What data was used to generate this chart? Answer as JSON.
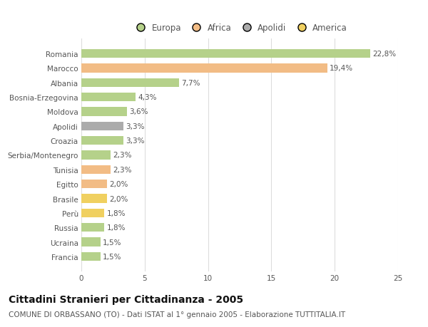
{
  "categories": [
    "Romania",
    "Marocco",
    "Albania",
    "Bosnia-Erzegovina",
    "Moldova",
    "Apolidi",
    "Croazia",
    "Serbia/Montenegro",
    "Tunisia",
    "Egitto",
    "Brasile",
    "Perù",
    "Russia",
    "Ucraina",
    "Francia"
  ],
  "values": [
    22.8,
    19.4,
    7.7,
    4.3,
    3.6,
    3.3,
    3.3,
    2.3,
    2.3,
    2.0,
    2.0,
    1.8,
    1.8,
    1.5,
    1.5
  ],
  "labels": [
    "22,8%",
    "19,4%",
    "7,7%",
    "4,3%",
    "3,6%",
    "3,3%",
    "3,3%",
    "2,3%",
    "2,3%",
    "2,0%",
    "2,0%",
    "1,8%",
    "1,8%",
    "1,5%",
    "1,5%"
  ],
  "colors": [
    "#b5d18a",
    "#f2bc85",
    "#b5d18a",
    "#b5d18a",
    "#b5d18a",
    "#ababab",
    "#b5d18a",
    "#b5d18a",
    "#f2bc85",
    "#f2bc85",
    "#f0d060",
    "#f0d060",
    "#b5d18a",
    "#b5d18a",
    "#b5d18a"
  ],
  "legend": [
    {
      "label": "Europa",
      "color": "#b5d18a"
    },
    {
      "label": "Africa",
      "color": "#f2bc85"
    },
    {
      "label": "Apolidi",
      "color": "#ababab"
    },
    {
      "label": "America",
      "color": "#f0d060"
    }
  ],
  "title": "Cittadini Stranieri per Cittadinanza - 2005",
  "subtitle": "COMUNE DI ORBASSANO (TO) - Dati ISTAT al 1° gennaio 2005 - Elaborazione TUTTITALIA.IT",
  "xlim": [
    0,
    25
  ],
  "xticks": [
    0,
    5,
    10,
    15,
    20,
    25
  ],
  "background_color": "#ffffff",
  "bar_height": 0.6,
  "title_fontsize": 10,
  "subtitle_fontsize": 7.5,
  "label_fontsize": 7.5,
  "tick_fontsize": 7.5,
  "legend_fontsize": 8.5
}
